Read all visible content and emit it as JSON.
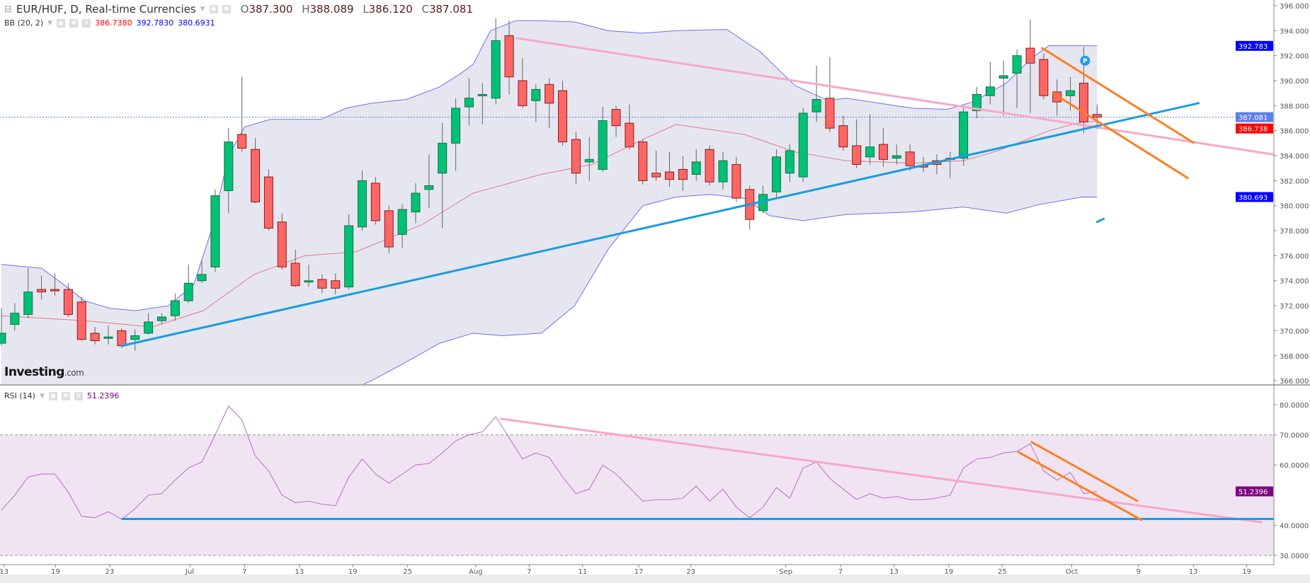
{
  "header": {
    "symbol": "EUR/HUF, D, Real-time Currencies",
    "open_label": "O",
    "open": "387.300",
    "high_label": "H",
    "high": "388.089",
    "low_label": "L",
    "low": "386.120",
    "close_label": "C",
    "close": "387.081"
  },
  "bb_indicator": {
    "label": "BB (20, 2)",
    "middle": "386.7380",
    "upper": "392.7830",
    "lower": "380.6931"
  },
  "rsi_indicator": {
    "label": "RSI (14)",
    "value": "51.2396"
  },
  "logo": {
    "main": "Investing",
    "suffix": ".com"
  },
  "colors": {
    "up": "#00c176",
    "down": "#ff6666",
    "bb_band": "#6f6ff0",
    "bb_mid": "#e07a8a",
    "bb_fill": "#e6e6f0",
    "rsi_fill": "#f1e4f2",
    "rsi_line": "#b070c0",
    "pink_trend": "#f7a8c8",
    "blue_trend": "#1a9be0",
    "orange_trend": "#ff7f1e"
  },
  "chart_data": [
    {
      "type": "candlestick",
      "title": "EUR/HUF, D, Real-time Currencies",
      "ylim": [
        366,
        396
      ],
      "yticks": [
        "366.000",
        "368.000",
        "370.000",
        "372.000",
        "374.000",
        "376.000",
        "378.000",
        "380.000",
        "382.000",
        "384.000",
        "386.000",
        "388.000",
        "390.000",
        "392.000",
        "394.000",
        "396.000"
      ],
      "xticks": [
        {
          "label": "13",
          "bar": 0.2
        },
        {
          "label": "19",
          "bar": 4.05
        },
        {
          "label": "23",
          "bar": 8.1
        },
        {
          "label": "Jul",
          "bar": 14.1
        },
        {
          "label": "7",
          "bar": 18.2
        },
        {
          "label": "13",
          "bar": 22.3
        },
        {
          "label": "19",
          "bar": 26.3
        },
        {
          "label": "25",
          "bar": 30.4
        },
        {
          "label": "Aug",
          "bar": 35.5
        },
        {
          "label": "7",
          "bar": 39.5
        },
        {
          "label": "11",
          "bar": 43.5
        },
        {
          "label": "17",
          "bar": 47.7
        },
        {
          "label": "23",
          "bar": 51.6
        },
        {
          "label": "Sep",
          "bar": 58.7
        },
        {
          "label": "7",
          "bar": 62.8
        },
        {
          "label": "13",
          "bar": 66.8
        },
        {
          "label": "19",
          "bar": 70.9
        },
        {
          "label": "25",
          "bar": 74.9
        },
        {
          "label": "Oct",
          "bar": 80.1
        },
        {
          "label": "9",
          "bar": 85.1
        },
        {
          "label": "13",
          "bar": 89.2
        },
        {
          "label": "19",
          "bar": 93.2
        }
      ],
      "ohlc": [
        [
          369.0,
          371.8,
          368.8,
          369.8
        ],
        [
          370.5,
          372.2,
          370.0,
          371.4
        ],
        [
          371.3,
          375.0,
          371.0,
          373.1
        ],
        [
          373.3,
          374.4,
          372.5,
          373.1
        ],
        [
          373.3,
          374.6,
          372.8,
          373.2
        ],
        [
          373.3,
          373.8,
          371.1,
          371.3
        ],
        [
          372.3,
          372.7,
          369.2,
          369.3
        ],
        [
          369.8,
          370.3,
          368.9,
          369.2
        ],
        [
          369.4,
          370.4,
          368.9,
          369.5
        ],
        [
          370.0,
          370.2,
          368.6,
          368.8
        ],
        [
          369.3,
          370.1,
          368.4,
          369.6
        ],
        [
          369.8,
          371.4,
          369.7,
          370.7
        ],
        [
          370.8,
          371.4,
          370.5,
          371.1
        ],
        [
          371.2,
          373.0,
          370.8,
          372.4
        ],
        [
          372.4,
          375.3,
          372.2,
          373.8
        ],
        [
          374.0,
          375.6,
          373.8,
          374.5
        ],
        [
          375.1,
          381.3,
          374.7,
          380.8
        ],
        [
          381.2,
          386.2,
          379.4,
          385.1
        ],
        [
          385.7,
          390.3,
          384.3,
          384.6
        ],
        [
          384.5,
          385.4,
          380.2,
          380.3
        ],
        [
          382.3,
          382.9,
          378.0,
          378.2
        ],
        [
          378.7,
          379.4,
          374.9,
          375.1
        ],
        [
          375.4,
          376.5,
          373.5,
          373.6
        ],
        [
          373.9,
          375.3,
          373.5,
          374.0
        ],
        [
          374.1,
          374.5,
          373.0,
          373.4
        ],
        [
          374.0,
          374.6,
          372.9,
          373.4
        ],
        [
          373.5,
          379.3,
          373.3,
          378.4
        ],
        [
          378.3,
          382.8,
          378.0,
          382.0
        ],
        [
          381.8,
          382.3,
          378.5,
          378.8
        ],
        [
          379.6,
          380.0,
          376.2,
          376.7
        ],
        [
          377.7,
          380.1,
          376.6,
          379.7
        ],
        [
          379.5,
          381.8,
          378.6,
          381.0
        ],
        [
          381.3,
          384.1,
          379.8,
          381.6
        ],
        [
          382.6,
          386.6,
          378.2,
          385.0
        ],
        [
          385.0,
          388.6,
          382.8,
          387.8
        ],
        [
          387.9,
          390.2,
          386.4,
          388.6
        ],
        [
          388.8,
          389.8,
          386.5,
          388.9
        ],
        [
          388.6,
          395.0,
          388.1,
          393.2
        ],
        [
          393.6,
          394.8,
          388.9,
          390.3
        ],
        [
          390.0,
          391.8,
          387.8,
          388.0
        ],
        [
          388.4,
          389.7,
          386.7,
          389.3
        ],
        [
          389.7,
          390.2,
          386.2,
          388.2
        ],
        [
          389.2,
          390.0,
          384.8,
          385.1
        ],
        [
          385.3,
          385.9,
          381.7,
          382.6
        ],
        [
          383.5,
          385.5,
          382.0,
          383.7
        ],
        [
          382.9,
          387.9,
          382.7,
          386.8
        ],
        [
          387.7,
          388.0,
          385.5,
          386.4
        ],
        [
          386.6,
          388.1,
          384.5,
          384.7
        ],
        [
          385.1,
          385.3,
          381.7,
          382.0
        ],
        [
          382.6,
          384.4,
          382.0,
          382.3
        ],
        [
          382.7,
          384.3,
          381.5,
          382.1
        ],
        [
          382.9,
          384.0,
          381.2,
          382.1
        ],
        [
          382.5,
          384.5,
          382.0,
          383.5
        ],
        [
          384.5,
          384.8,
          381.6,
          381.9
        ],
        [
          381.9,
          384.3,
          381.3,
          383.6
        ],
        [
          383.3,
          383.9,
          380.3,
          380.6
        ],
        [
          381.3,
          381.6,
          378.1,
          378.9
        ],
        [
          379.6,
          381.6,
          379.4,
          380.9
        ],
        [
          381.1,
          384.5,
          380.6,
          383.9
        ],
        [
          382.6,
          384.9,
          381.9,
          384.4
        ],
        [
          382.3,
          387.8,
          381.9,
          387.4
        ],
        [
          387.5,
          391.2,
          386.7,
          388.5
        ],
        [
          388.6,
          391.9,
          385.9,
          386.2
        ],
        [
          386.4,
          387.2,
          384.4,
          384.7
        ],
        [
          384.8,
          386.9,
          383.0,
          383.3
        ],
        [
          383.9,
          387.3,
          383.3,
          384.7
        ],
        [
          384.9,
          386.2,
          383.1,
          383.7
        ],
        [
          383.8,
          384.9,
          383.3,
          384.0
        ],
        [
          384.3,
          384.9,
          382.8,
          383.2
        ],
        [
          383.2,
          383.9,
          382.7,
          383.1
        ],
        [
          383.6,
          384.1,
          382.5,
          383.3
        ],
        [
          383.7,
          384.3,
          382.2,
          383.8
        ],
        [
          383.8,
          387.9,
          383.2,
          387.5
        ],
        [
          387.6,
          389.5,
          387.0,
          388.9
        ],
        [
          388.8,
          391.5,
          388.1,
          389.5
        ],
        [
          390.2,
          391.6,
          387.2,
          390.4
        ],
        [
          390.6,
          392.5,
          387.8,
          392.0
        ],
        [
          392.6,
          394.9,
          387.4,
          391.4
        ],
        [
          391.7,
          392.2,
          388.5,
          388.8
        ],
        [
          389.1,
          390.1,
          387.2,
          388.3
        ],
        [
          388.8,
          390.3,
          387.6,
          389.2
        ],
        [
          389.8,
          392.7,
          385.8,
          386.7
        ],
        [
          387.3,
          388.089,
          386.12,
          387.081
        ]
      ],
      "bollinger": {
        "upper": [
          [
            0,
            375.3
          ],
          [
            3,
            375.0
          ],
          [
            4.9,
            373.5
          ],
          [
            6.2,
            372.4
          ],
          [
            8.1,
            371.8
          ],
          [
            10,
            371.6
          ],
          [
            12.5,
            372
          ],
          [
            14.4,
            373.7
          ],
          [
            15.7,
            378
          ],
          [
            17,
            384
          ],
          [
            18.2,
            386.3
          ],
          [
            20.1,
            386.9
          ],
          [
            23.9,
            386.9
          ],
          [
            25.8,
            387.8
          ],
          [
            27.7,
            388.2
          ],
          [
            30.3,
            388.5
          ],
          [
            32.8,
            389.5
          ],
          [
            34.4,
            390.6
          ],
          [
            35.3,
            391.3
          ],
          [
            36.6,
            394.0
          ],
          [
            38.5,
            394.8
          ],
          [
            40.4,
            394.8
          ],
          [
            42.9,
            394.7
          ],
          [
            45.4,
            394.0
          ],
          [
            48,
            393.8
          ],
          [
            50.5,
            394.0
          ],
          [
            54.3,
            394.1
          ],
          [
            56.8,
            392.3
          ],
          [
            59.4,
            389.6
          ],
          [
            61.9,
            388.4
          ],
          [
            63.2,
            388.6
          ],
          [
            65.7,
            388.2
          ],
          [
            68.2,
            387.8
          ],
          [
            70.8,
            387.7
          ],
          [
            72.7,
            388.3
          ],
          [
            75.2,
            389.8
          ],
          [
            77.1,
            391.8
          ],
          [
            78.4,
            392.8
          ],
          [
            80.9,
            392.8
          ],
          [
            82,
            392.783
          ]
        ],
        "middle": [
          [
            0,
            371.2
          ],
          [
            6.2,
            370.8
          ],
          [
            11.3,
            370.3
          ],
          [
            15.1,
            371.6
          ],
          [
            18.9,
            374.5
          ],
          [
            22.7,
            376.0
          ],
          [
            26.5,
            376.3
          ],
          [
            31.5,
            378.5
          ],
          [
            35.3,
            381
          ],
          [
            40.4,
            382.5
          ],
          [
            44.2,
            383.3
          ],
          [
            48,
            385.3
          ],
          [
            50.5,
            386.5
          ],
          [
            55.6,
            385.7
          ],
          [
            59.4,
            384.3
          ],
          [
            63.2,
            383.6
          ],
          [
            68.2,
            383.4
          ],
          [
            72,
            383.6
          ],
          [
            74.6,
            384.4
          ],
          [
            78.4,
            386.0
          ],
          [
            80.9,
            386.7
          ],
          [
            82,
            386.738
          ]
        ],
        "lower": [
          [
            0,
            365.5
          ],
          [
            6.2,
            364.5
          ],
          [
            16.3,
            365.3
          ],
          [
            18.9,
            364.5
          ],
          [
            25.2,
            364.8
          ],
          [
            27.7,
            366.0
          ],
          [
            30.3,
            367.5
          ],
          [
            32.8,
            369.0
          ],
          [
            35.3,
            369.8
          ],
          [
            37.5,
            369.6
          ],
          [
            40.4,
            369.8
          ],
          [
            42.9,
            372
          ],
          [
            45.4,
            376.5
          ],
          [
            48,
            380.0
          ],
          [
            50.5,
            380.7
          ],
          [
            53,
            380.9
          ],
          [
            55.6,
            380.6
          ],
          [
            57.5,
            379.2
          ],
          [
            60,
            378.8
          ],
          [
            63.2,
            379.3
          ],
          [
            68.2,
            379.5
          ],
          [
            72,
            379.9
          ],
          [
            75.2,
            379.4
          ],
          [
            77.7,
            380.1
          ],
          [
            80.9,
            380.7
          ],
          [
            82,
            380.693
          ]
        ]
      },
      "trendlines": [
        {
          "name": "pink-resistance",
          "color": "pink_trend",
          "from": [
            38.6,
            393.4
          ],
          "to": [
            95.8,
            384.0
          ]
        },
        {
          "name": "blue-support",
          "color": "blue_trend",
          "from": [
            9.05,
            368.8
          ],
          "to": [
            89.6,
            388.2
          ]
        },
        {
          "name": "orange-channel-upper",
          "color": "orange_trend",
          "from": [
            77.9,
            392.6
          ],
          "to": [
            89.2,
            385.05
          ]
        },
        {
          "name": "orange-channel-lower",
          "color": "orange_trend",
          "from": [
            78.7,
            389.0
          ],
          "to": [
            88.8,
            382.2
          ]
        },
        {
          "name": "blue-mark",
          "color": "blue_trend",
          "from": [
            82.0,
            378.7
          ],
          "to": [
            82.5,
            378.95
          ]
        }
      ],
      "marker": {
        "label": "P",
        "bar": 81.1,
        "price": 391.6
      },
      "price_badges": [
        {
          "value": "392.783",
          "color": "#0000ff"
        },
        {
          "value": "387.081",
          "color": "#5a7fe6"
        },
        {
          "value": "386.738",
          "color": "#ff0000"
        },
        {
          "value": "380.693",
          "color": "#0000ff"
        }
      ],
      "last_price": 387.081
    },
    {
      "type": "line",
      "title": "RSI (14)",
      "ylim": [
        30,
        80
      ],
      "band": [
        30,
        70
      ],
      "yticks": [
        "30.0000",
        "40.0000",
        "60.0000",
        "70.0000",
        "80.0000"
      ],
      "values": [
        45,
        50,
        56,
        57,
        57,
        51,
        43,
        42.5,
        44.5,
        42,
        45.5,
        50,
        50.5,
        55,
        59,
        61,
        70,
        79.5,
        75,
        63,
        58,
        50,
        47.5,
        48,
        47,
        46.5,
        56,
        62,
        57,
        54,
        57,
        60,
        60.5,
        64,
        68,
        70,
        71,
        76,
        69,
        62,
        64,
        62.5,
        56,
        50.5,
        52,
        60,
        57,
        52.5,
        48,
        48.5,
        48.5,
        49,
        53,
        48,
        52,
        46,
        42.5,
        46,
        52.5,
        49,
        59,
        61,
        55.5,
        52,
        48.5,
        50.5,
        49,
        49.5,
        48.5,
        48.5,
        49,
        50,
        59,
        62,
        62.5,
        64,
        64.5,
        67,
        58,
        55,
        57.5,
        50.5,
        51.2396
      ],
      "trendlines": [
        {
          "name": "pink-rsi-trend",
          "color": "pink_trend",
          "from": [
            37.4,
            75.3
          ],
          "to": [
            94.3,
            41
          ]
        },
        {
          "name": "blue-rsi-support",
          "color": "blue_trend",
          "from": [
            9.05,
            42.1
          ],
          "to": [
            95.8,
            42.1
          ]
        },
        {
          "name": "orange-rsi-upper",
          "color": "orange_trend",
          "from": [
            77.1,
            67.6
          ],
          "to": [
            85,
            48.1
          ]
        },
        {
          "name": "orange-rsi-lower",
          "color": "orange_trend",
          "from": [
            76.1,
            64.3
          ],
          "to": [
            85.3,
            41.8
          ]
        }
      ],
      "badge": {
        "value": "51.2396",
        "color": "#800080"
      }
    }
  ]
}
